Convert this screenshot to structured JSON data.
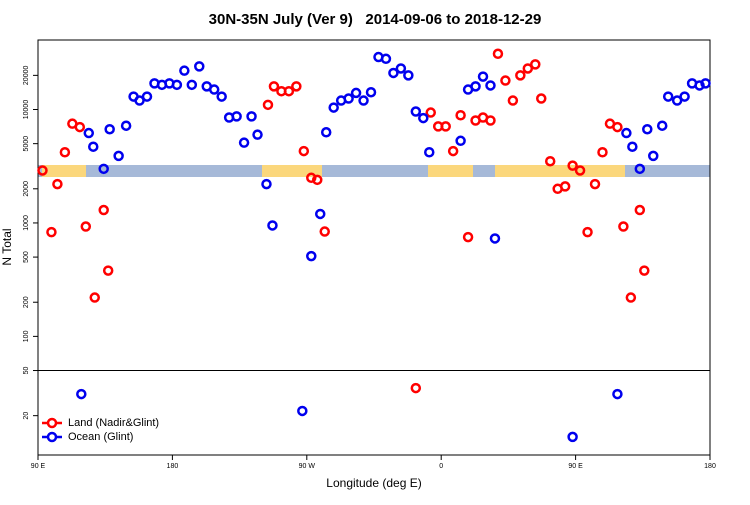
{
  "chart_data": {
    "type": "scatter",
    "title": "30N-35N July (Ver 9)   2014-09-06 to 2018-12-29",
    "x_label": "Longitude (deg E)",
    "y_label": "N Total",
    "xlim": [
      90,
      540
    ],
    "xticks": [
      {
        "value": 90,
        "label": "90 E"
      },
      180,
      {
        "value": 270,
        "label": "90 W"
      },
      {
        "value": 360,
        "label": "0"
      },
      {
        "value": 450,
        "label": "90 E"
      },
      {
        "value": 540,
        "label": "180"
      }
    ],
    "ylim": [
      9,
      41000
    ],
    "yticks": [
      20000,
      10000,
      5000,
      2000,
      1000,
      500,
      200,
      100,
      50,
      20
    ],
    "y_scale": "log",
    "hline": 50,
    "legend": "lower left",
    "series": [
      {
        "name": "Land (Nadir&Glint)",
        "color": "#ff0000",
        "x": [
          93,
          99,
          103,
          108,
          113,
          118,
          122,
          128,
          134,
          137,
          244,
          248,
          253,
          258,
          263,
          268,
          273,
          277,
          282,
          343,
          353,
          358,
          363,
          368,
          373,
          378,
          383,
          388,
          393,
          398,
          403,
          408,
          413,
          418,
          423,
          427,
          433,
          438,
          443,
          448,
          453,
          458,
          463,
          468,
          473,
          478,
          482,
          487,
          493,
          496
        ],
        "values": [
          2900,
          830,
          2200,
          4200,
          7500,
          7000,
          930,
          220,
          1300,
          380,
          11000,
          16000,
          14500,
          14500,
          16000,
          4300,
          2500,
          2400,
          840,
          35,
          9400,
          7100,
          7100,
          4300,
          8900,
          750,
          8000,
          8500,
          8000,
          31000,
          18000,
          12000,
          20000,
          23000,
          25000,
          12500,
          3500,
          2000,
          2100,
          3200,
          2900,
          830,
          2200,
          4200,
          7500,
          7000,
          930,
          220,
          1300,
          380
        ]
      },
      {
        "name": "Ocean (Glint)",
        "color": "#0000ee",
        "x": [
          119,
          124,
          127,
          134,
          138,
          144,
          149,
          154,
          158,
          163,
          168,
          173,
          178,
          183,
          188,
          193,
          198,
          203,
          208,
          213,
          218,
          223,
          228,
          233,
          237,
          243,
          247,
          267,
          273,
          279,
          283,
          288,
          293,
          298,
          303,
          308,
          313,
          318,
          323,
          328,
          333,
          338,
          343,
          348,
          352,
          373,
          378,
          383,
          388,
          393,
          396,
          448,
          478,
          484,
          488,
          493,
          498,
          502,
          508,
          512,
          518,
          523,
          528,
          533,
          537
        ],
        "values": [
          31,
          6200,
          4700,
          3000,
          6700,
          3900,
          7200,
          13000,
          12000,
          13000,
          17000,
          16500,
          17000,
          16500,
          22000,
          16500,
          24000,
          16000,
          15000,
          13000,
          8500,
          8700,
          5100,
          8700,
          6000,
          2200,
          950,
          22,
          510,
          1200,
          6300,
          10400,
          12000,
          12500,
          14000,
          12000,
          14200,
          29000,
          28000,
          21000,
          23000,
          20000,
          9600,
          8400,
          4200,
          5300,
          15000,
          16000,
          19500,
          16300,
          730,
          13,
          31,
          6200,
          4700,
          3000,
          6700,
          3900,
          7200,
          13000,
          12000,
          13000,
          17000,
          16300,
          17000
        ]
      }
    ]
  }
}
